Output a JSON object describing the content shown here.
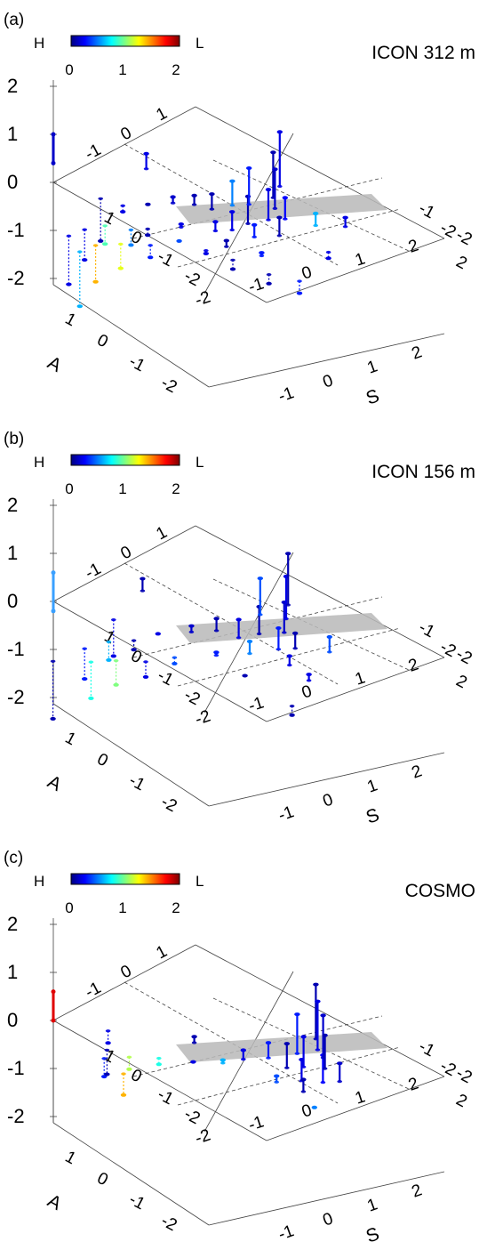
{
  "colorbar": {
    "left_label": "H",
    "right_label": "L",
    "ticks": [
      "0",
      "1",
      "2"
    ],
    "colors": [
      "#00007f",
      "#0000ff",
      "#0080ff",
      "#00ffff",
      "#80ff80",
      "#ffff00",
      "#ff8000",
      "#ff0000",
      "#7f0000"
    ]
  },
  "axes": {
    "z_ticks": [
      "2",
      "1",
      "0",
      "-1",
      "-2"
    ],
    "a_label": "A",
    "s_label": "S",
    "a_ticks": [
      "1",
      "0",
      "-1",
      "-2"
    ],
    "s_ticks": [
      "-2",
      "-1",
      "0",
      "1",
      "2"
    ],
    "back_left_ticks": [
      "-1",
      "0",
      "1"
    ],
    "back_right_ticks": [
      "-1",
      "-2"
    ],
    "right_ticks": [
      "-2",
      "2"
    ],
    "floor_left_ticks": [
      "1",
      "0",
      "-1",
      "-2"
    ],
    "floor_right_ticks": [
      "-2",
      "-1",
      "0",
      "1",
      "2"
    ]
  },
  "chart_data": [
    {
      "panel_letter": "(a)",
      "title": "ICON 312 m",
      "type": "scatter",
      "axis_marker": {
        "z_range": [
          0.4,
          1.0
        ],
        "color": "#0000c8"
      },
      "series": [
        {
          "values": [
            {
              "s": 0.2,
              "a": -1.7,
              "z": 1.8,
              "c": 0.2
            },
            {
              "s": 0.3,
              "a": -1.4,
              "z": 1.5,
              "c": 0.1
            },
            {
              "s": 0.5,
              "a": -1.2,
              "z": 1.3,
              "c": 0.15
            },
            {
              "s": 0.1,
              "a": -1.0,
              "z": 1.2,
              "c": 0.3
            },
            {
              "s": 0.6,
              "a": -0.9,
              "z": 1.0,
              "c": 0.2
            },
            {
              "s": 0.4,
              "a": -0.6,
              "z": 0.9,
              "c": 0.1
            },
            {
              "s": -0.1,
              "a": -0.8,
              "z": 0.8,
              "c": 0.5
            },
            {
              "s": 0.8,
              "a": -1.1,
              "z": 0.7,
              "c": 0.25
            },
            {
              "s": 1.0,
              "a": -0.7,
              "z": 0.6,
              "c": 0.1
            },
            {
              "s": 0.3,
              "a": -0.3,
              "z": 0.6,
              "c": 0.2
            },
            {
              "s": -0.3,
              "a": -0.5,
              "z": 0.5,
              "c": 0.1
            },
            {
              "s": 0.7,
              "a": -0.4,
              "z": 0.4,
              "c": 0.3
            },
            {
              "s": 1.3,
              "a": -1.3,
              "z": 0.4,
              "c": 0.6
            },
            {
              "s": 1.7,
              "a": -1.6,
              "z": 0.3,
              "c": 0.2
            },
            {
              "s": -0.6,
              "a": -0.4,
              "z": 0.3,
              "c": 0.1
            },
            {
              "s": 0.1,
              "a": -0.1,
              "z": 0.3,
              "c": 0.2
            },
            {
              "s": -0.9,
              "a": -0.2,
              "z": 0.2,
              "c": 0.15
            },
            {
              "s": 0.5,
              "a": 0.1,
              "z": 0.2,
              "c": 0.1
            },
            {
              "s": -0.4,
              "a": 0.2,
              "z": 0.1,
              "c": 0.2
            },
            {
              "s": 1.1,
              "a": -0.1,
              "z": 0.1,
              "c": 0.3
            },
            {
              "s": -1.2,
              "a": 0.1,
              "z": 0.0,
              "c": 0.1
            },
            {
              "s": -0.2,
              "a": 0.5,
              "z": 0.0,
              "c": 0.4
            },
            {
              "s": 0.3,
              "a": 0.4,
              "z": -0.1,
              "c": 0.2
            },
            {
              "s": -0.8,
              "a": 0.6,
              "z": -0.2,
              "c": 0.1
            },
            {
              "s": -1.5,
              "a": 0.4,
              "z": -0.2,
              "c": 0.2
            },
            {
              "s": 0.8,
              "a": 0.3,
              "z": -0.3,
              "c": 0.1
            },
            {
              "s": -0.5,
              "a": 0.9,
              "z": -0.4,
              "c": 0.3
            },
            {
              "s": -1.0,
              "a": 0.8,
              "z": -0.5,
              "c": 0.5
            },
            {
              "s": -1.4,
              "a": 1.0,
              "z": -0.6,
              "c": 0.9
            },
            {
              "s": -0.9,
              "a": 1.2,
              "z": -0.8,
              "c": 1.2
            },
            {
              "s": -1.6,
              "a": 1.3,
              "z": -1.0,
              "c": 0.2
            },
            {
              "s": -1.2,
              "a": 1.5,
              "z": -1.2,
              "c": 1.4
            },
            {
              "s": 1.9,
              "a": -0.9,
              "z": -0.2,
              "c": 0.2
            },
            {
              "s": 1.5,
              "a": 0.2,
              "z": -0.3,
              "c": 0.1
            },
            {
              "s": 2.0,
              "a": 0.0,
              "z": -0.4,
              "c": 0.3
            },
            {
              "s": -1.8,
              "a": -0.6,
              "z": 0.5,
              "c": 0.2
            },
            {
              "s": -1.9,
              "a": 0.5,
              "z": -1.4,
              "c": 0.1
            },
            {
              "s": -1.7,
              "a": 1.6,
              "z": -1.6,
              "c": 0.2
            },
            {
              "s": -1.3,
              "a": 1.8,
              "z": -1.8,
              "c": 0.6
            }
          ]
        }
      ]
    },
    {
      "panel_letter": "(b)",
      "title": "ICON 156 m",
      "type": "scatter",
      "axis_marker": {
        "z_range": [
          -0.2,
          0.6
        ],
        "color": "#3aa0ff"
      },
      "series": [
        {
          "values": [
            {
              "s": 0.3,
              "a": -1.8,
              "z": 1.7,
              "c": 0.1
            },
            {
              "s": 0.5,
              "a": -1.5,
              "z": 1.4,
              "c": 0.2
            },
            {
              "s": 0.1,
              "a": -1.3,
              "z": 1.2,
              "c": 0.4
            },
            {
              "s": 0.7,
              "a": -1.2,
              "z": 1.0,
              "c": 0.15
            },
            {
              "s": 0.4,
              "a": -0.9,
              "z": 0.9,
              "c": 0.1
            },
            {
              "s": 0.9,
              "a": -0.8,
              "z": 0.7,
              "c": 0.3
            },
            {
              "s": 0.2,
              "a": -0.6,
              "z": 0.6,
              "c": 0.2
            },
            {
              "s": 1.1,
              "a": -1.0,
              "z": 0.5,
              "c": 0.1
            },
            {
              "s": 0.6,
              "a": -0.4,
              "z": 0.4,
              "c": 0.5
            },
            {
              "s": -0.2,
              "a": -0.5,
              "z": 0.4,
              "c": 0.1
            },
            {
              "s": 1.3,
              "a": -0.6,
              "z": 0.3,
              "c": 0.2
            },
            {
              "s": -0.5,
              "a": -0.2,
              "z": 0.2,
              "c": 0.15
            },
            {
              "s": 0.2,
              "a": 0.0,
              "z": 0.1,
              "c": 0.3
            },
            {
              "s": 0.9,
              "a": 0.1,
              "z": 0.0,
              "c": 0.1
            },
            {
              "s": -0.9,
              "a": 0.2,
              "z": 0.0,
              "c": 0.2
            },
            {
              "s": -0.3,
              "a": 0.5,
              "z": -0.2,
              "c": 0.4
            },
            {
              "s": -1.1,
              "a": 0.6,
              "z": -0.3,
              "c": 0.1
            },
            {
              "s": -0.6,
              "a": 0.9,
              "z": -0.5,
              "c": 0.2
            },
            {
              "s": -1.4,
              "a": 0.9,
              "z": -0.6,
              "c": 0.6
            },
            {
              "s": -1.0,
              "a": 1.2,
              "z": -0.8,
              "c": 1.0
            },
            {
              "s": -1.6,
              "a": 1.3,
              "z": -1.0,
              "c": 0.3
            },
            {
              "s": -1.3,
              "a": 1.5,
              "z": -1.2,
              "c": 0.8
            },
            {
              "s": 1.8,
              "a": -0.5,
              "z": 0.2,
              "c": 0.2
            },
            {
              "s": 2.0,
              "a": 0.2,
              "z": -0.3,
              "c": 0.1
            },
            {
              "s": 1.6,
              "a": -1.3,
              "z": 0.5,
              "c": 0.4
            },
            {
              "s": -1.8,
              "a": -0.5,
              "z": 0.4,
              "c": 0.1
            },
            {
              "s": -1.7,
              "a": 0.4,
              "z": -1.2,
              "c": 0.2
            },
            {
              "s": -1.8,
              "a": 1.9,
              "z": -1.9,
              "c": 0.1
            }
          ]
        }
      ]
    },
    {
      "panel_letter": "(c)",
      "title": "COSMO",
      "type": "scatter",
      "axis_marker": {
        "z_range": [
          0.0,
          0.6
        ],
        "color": "#e00000"
      },
      "series": [
        {
          "values": [
            {
              "s": 0.9,
              "a": -1.8,
              "z": 1.8,
              "c": 0.1
            },
            {
              "s": 1.1,
              "a": -1.6,
              "z": 1.6,
              "c": 0.2
            },
            {
              "s": 1.3,
              "a": -1.5,
              "z": 1.4,
              "c": 0.15
            },
            {
              "s": 0.9,
              "a": -1.3,
              "z": 1.3,
              "c": 0.3
            },
            {
              "s": 1.5,
              "a": -1.3,
              "z": 1.1,
              "c": 0.1
            },
            {
              "s": 1.2,
              "a": -1.1,
              "z": 1.0,
              "c": 0.2
            },
            {
              "s": 1.7,
              "a": -1.0,
              "z": 0.9,
              "c": 0.25
            },
            {
              "s": 1.0,
              "a": -0.9,
              "z": 0.8,
              "c": 0.1
            },
            {
              "s": 1.4,
              "a": -0.8,
              "z": 0.7,
              "c": 0.2
            },
            {
              "s": 1.9,
              "a": -1.2,
              "z": 0.6,
              "c": 0.15
            },
            {
              "s": 0.6,
              "a": -0.9,
              "z": 0.5,
              "c": 0.3
            },
            {
              "s": 1.6,
              "a": -0.6,
              "z": 0.4,
              "c": 0.1
            },
            {
              "s": 0.3,
              "a": -0.6,
              "z": 0.3,
              "c": 0.2
            },
            {
              "s": 1.1,
              "a": -0.5,
              "z": 0.2,
              "c": 0.4
            },
            {
              "s": 0.1,
              "a": -0.3,
              "z": 0.1,
              "c": 0.6
            },
            {
              "s": -0.3,
              "a": 0.0,
              "z": 0.0,
              "c": 0.2
            },
            {
              "s": -0.8,
              "a": 0.3,
              "z": -0.2,
              "c": 0.8
            },
            {
              "s": -1.2,
              "a": 0.6,
              "z": -0.4,
              "c": 1.1
            },
            {
              "s": -1.5,
              "a": 0.9,
              "z": -0.6,
              "c": 0.3
            },
            {
              "s": -1.0,
              "a": 1.0,
              "z": -0.7,
              "c": 1.4
            },
            {
              "s": -1.6,
              "a": 0.7,
              "z": -0.8,
              "c": 0.1
            },
            {
              "s": 2.0,
              "a": -0.4,
              "z": 0.0,
              "c": 0.5
            },
            {
              "s": -1.9,
              "a": 0.3,
              "z": -0.4,
              "c": 0.2
            },
            {
              "s": -0.6,
              "a": -0.4,
              "z": 0.2,
              "c": 0.1
            }
          ]
        }
      ]
    }
  ]
}
